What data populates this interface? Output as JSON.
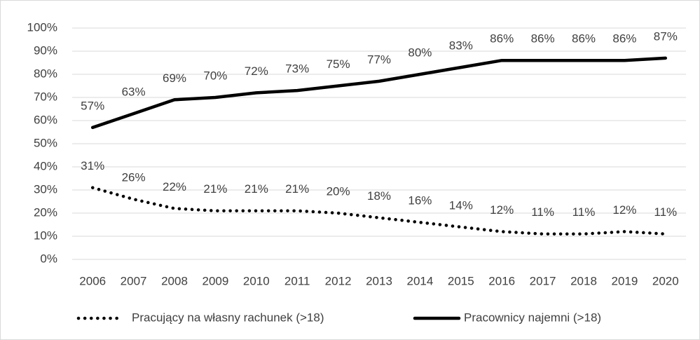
{
  "chart_data": {
    "type": "line",
    "categories": [
      "2006",
      "2007",
      "2008",
      "2009",
      "2010",
      "2011",
      "2012",
      "2013",
      "2014",
      "2015",
      "2016",
      "2017",
      "2018",
      "2019",
      "2020"
    ],
    "series": [
      {
        "name": "Pracujący na własny rachunek  (>18)",
        "color": "#000000",
        "style": "dotted",
        "values": [
          31,
          26,
          22,
          21,
          21,
          21,
          20,
          18,
          16,
          14,
          12,
          11,
          11,
          12,
          11
        ],
        "value_labels": [
          "31%",
          "26%",
          "22%",
          "21%",
          "21%",
          "21%",
          "20%",
          "18%",
          "16%",
          "14%",
          "12%",
          "11%",
          "11%",
          "12%",
          "11%"
        ]
      },
      {
        "name": "Pracownicy najemni (>18)",
        "color": "#000000",
        "style": "solid",
        "values": [
          57,
          63,
          69,
          70,
          72,
          73,
          75,
          77,
          80,
          83,
          86,
          86,
          86,
          86,
          87
        ],
        "value_labels": [
          "57%",
          "63%",
          "69%",
          "70%",
          "72%",
          "73%",
          "75%",
          "77%",
          "80%",
          "83%",
          "86%",
          "86%",
          "86%",
          "86%",
          "87%"
        ]
      }
    ],
    "ylim": [
      0,
      100
    ],
    "yticks": [
      {
        "value": 0,
        "label": "0%"
      },
      {
        "value": 10,
        "label": "10%"
      },
      {
        "value": 20,
        "label": "20%"
      },
      {
        "value": 30,
        "label": "30%"
      },
      {
        "value": 40,
        "label": "40%"
      },
      {
        "value": 50,
        "label": "50%"
      },
      {
        "value": 60,
        "label": "60%"
      },
      {
        "value": 70,
        "label": "70%"
      },
      {
        "value": 80,
        "label": "80%"
      },
      {
        "value": 90,
        "label": "90%"
      },
      {
        "value": 100,
        "label": "100%"
      }
    ],
    "grid": true,
    "legend": "bottom"
  }
}
